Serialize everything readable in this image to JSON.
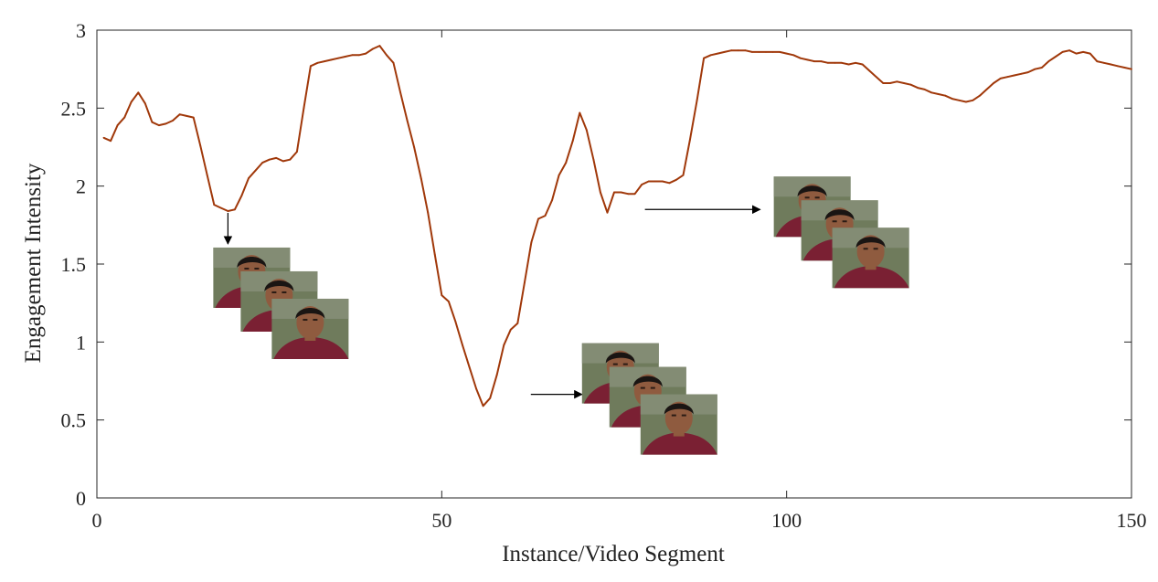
{
  "chart_data": {
    "type": "line",
    "xlabel": "Instance/Video Segment",
    "ylabel": "Engagement Intensity",
    "xlim": [
      0,
      150
    ],
    "ylim": [
      0,
      3
    ],
    "xticks": [
      0,
      50,
      100,
      150
    ],
    "yticks": [
      0,
      0.5,
      1,
      1.5,
      2,
      2.5,
      3
    ],
    "xtick_labels": [
      "0",
      "50",
      "100",
      "150"
    ],
    "ytick_labels": [
      "0",
      "0.5",
      "1",
      "1.5",
      "2",
      "2.5",
      "3"
    ],
    "grid": false,
    "series": [
      {
        "color": "#a0380a",
        "x": [
          1,
          2,
          3,
          4,
          5,
          6,
          7,
          8,
          9,
          10,
          11,
          12,
          13,
          14,
          15,
          16,
          17,
          18,
          19,
          20,
          21,
          22,
          23,
          24,
          25,
          26,
          27,
          28,
          29,
          30,
          31,
          32,
          33,
          34,
          35,
          36,
          37,
          38,
          39,
          40,
          41,
          42,
          43,
          44,
          45,
          46,
          47,
          48,
          49,
          50,
          51,
          52,
          53,
          54,
          55,
          56,
          57,
          58,
          59,
          60,
          61,
          62,
          63,
          64,
          65,
          66,
          67,
          68,
          69,
          70,
          71,
          72,
          73,
          74,
          75,
          76,
          77,
          78,
          79,
          80,
          81,
          82,
          83,
          84,
          85,
          86,
          87,
          88,
          89,
          90,
          91,
          92,
          93,
          94,
          95,
          96,
          97,
          98,
          99,
          100,
          101,
          102,
          103,
          104,
          105,
          106,
          107,
          108,
          109,
          110,
          111,
          112,
          113,
          114,
          115,
          116,
          117,
          118,
          119,
          120,
          121,
          122,
          123,
          124,
          125,
          126,
          127,
          128,
          129,
          130,
          131,
          132,
          133,
          134,
          135,
          136,
          137,
          138,
          139,
          140,
          141,
          142,
          143,
          144,
          145,
          146,
          147,
          148,
          149,
          150
        ],
        "y": [
          2.31,
          2.29,
          2.39,
          2.44,
          2.54,
          2.6,
          2.53,
          2.41,
          2.39,
          2.4,
          2.42,
          2.46,
          2.45,
          2.44,
          2.26,
          2.07,
          1.88,
          1.86,
          1.84,
          1.85,
          1.94,
          2.05,
          2.1,
          2.15,
          2.17,
          2.18,
          2.16,
          2.17,
          2.22,
          2.5,
          2.77,
          2.79,
          2.8,
          2.81,
          2.82,
          2.83,
          2.84,
          2.84,
          2.85,
          2.88,
          2.9,
          2.84,
          2.79,
          2.6,
          2.42,
          2.25,
          2.05,
          1.83,
          1.56,
          1.3,
          1.26,
          1.13,
          0.98,
          0.84,
          0.7,
          0.59,
          0.64,
          0.79,
          0.98,
          1.08,
          1.12,
          1.38,
          1.64,
          1.79,
          1.81,
          1.91,
          2.07,
          2.15,
          2.29,
          2.47,
          2.36,
          2.17,
          1.96,
          1.83,
          1.96,
          1.96,
          1.95,
          1.95,
          2.01,
          2.03,
          2.03,
          2.03,
          2.02,
          2.04,
          2.07,
          2.3,
          2.55,
          2.82,
          2.84,
          2.85,
          2.86,
          2.87,
          2.87,
          2.87,
          2.86,
          2.86,
          2.86,
          2.86,
          2.86,
          2.85,
          2.84,
          2.82,
          2.81,
          2.8,
          2.8,
          2.79,
          2.79,
          2.79,
          2.78,
          2.79,
          2.78,
          2.74,
          2.7,
          2.66,
          2.66,
          2.67,
          2.66,
          2.65,
          2.63,
          2.62,
          2.6,
          2.59,
          2.58,
          2.56,
          2.55,
          2.54,
          2.55,
          2.58,
          2.62,
          2.66,
          2.69,
          2.7,
          2.71,
          2.72,
          2.73,
          2.75,
          2.76,
          2.8,
          2.83,
          2.86,
          2.87,
          2.85,
          2.86,
          2.85,
          2.8,
          2.79,
          2.78,
          2.77,
          2.76,
          2.75
        ]
      }
    ],
    "annotations": [
      {
        "label": "face-frames-at-local-minimum",
        "anchor": [
          19,
          1.84
        ],
        "arrow": "down"
      },
      {
        "label": "face-frames-at-global-minimum",
        "anchor": [
          60,
          0.6
        ],
        "arrow": "right"
      },
      {
        "label": "face-frames-at-dip",
        "anchor": [
          78,
          1.85
        ],
        "arrow": "right"
      }
    ]
  },
  "colors": {
    "line": "#a0380a",
    "axes": "#262626",
    "grass": "#6f7b5c",
    "sweater": "#7a2033",
    "skin": "#8f5b3f",
    "hair": "#1a1513"
  }
}
